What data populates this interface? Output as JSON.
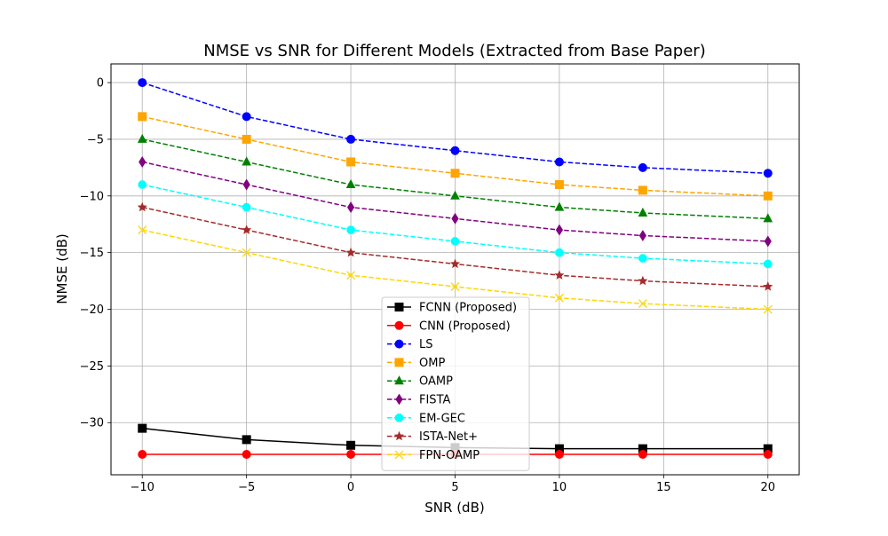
{
  "chart_data": {
    "type": "line",
    "title": "NMSE vs SNR for Different Models (Extracted from Base Paper)",
    "xlabel": "SNR (dB)",
    "ylabel": "NMSE (dB)",
    "x": [
      -10,
      -5,
      0,
      5,
      10,
      14,
      20
    ],
    "xlim": [
      -11.5,
      21.5
    ],
    "ylim": [
      -34.6,
      1.65
    ],
    "xticks": [
      -10,
      -5,
      0,
      5,
      10,
      15,
      20
    ],
    "yticks": [
      0,
      -5,
      -10,
      -15,
      -20,
      -25,
      -30
    ],
    "grid": true,
    "legend_position": "lower center",
    "series": [
      {
        "name": "FCNN (Proposed)",
        "color": "#000000",
        "marker": "square",
        "dashed": false,
        "values": [
          -30.5,
          -31.5,
          -32.0,
          -32.2,
          -32.3,
          -32.3,
          -32.3
        ]
      },
      {
        "name": "CNN (Proposed)",
        "color": "#ff0000",
        "marker": "circle",
        "dashed": false,
        "values": [
          -32.8,
          -32.8,
          -32.8,
          -32.8,
          -32.8,
          -32.8,
          -32.8
        ]
      },
      {
        "name": "LS",
        "color": "#0000ff",
        "marker": "circle",
        "dashed": true,
        "values": [
          0,
          -3,
          -5,
          -6,
          -7,
          -7.5,
          -8
        ]
      },
      {
        "name": "OMP",
        "color": "#ffa500",
        "marker": "square",
        "dashed": true,
        "values": [
          -3,
          -5,
          -7,
          -8,
          -9,
          -9.5,
          -10
        ]
      },
      {
        "name": "OAMP",
        "color": "#008000",
        "marker": "triangle",
        "dashed": true,
        "values": [
          -5,
          -7,
          -9,
          -10,
          -11,
          -11.5,
          -12
        ]
      },
      {
        "name": "FISTA",
        "color": "#800080",
        "marker": "diamond",
        "dashed": true,
        "values": [
          -7,
          -9,
          -11,
          -12,
          -13,
          -13.5,
          -14
        ]
      },
      {
        "name": "EM-GEC",
        "color": "#00ffff",
        "marker": "octagon",
        "dashed": true,
        "values": [
          -9,
          -11,
          -13,
          -14,
          -15,
          -15.5,
          -16
        ]
      },
      {
        "name": "ISTA-Net+",
        "color": "#a52a2a",
        "marker": "star",
        "dashed": true,
        "values": [
          -11,
          -13,
          -15,
          -16,
          -17,
          -17.5,
          -18
        ]
      },
      {
        "name": "FPN-OAMP",
        "color": "#ffd700",
        "marker": "x",
        "dashed": true,
        "values": [
          -13,
          -15,
          -17,
          -18,
          -19,
          -19.5,
          -20
        ]
      }
    ]
  }
}
